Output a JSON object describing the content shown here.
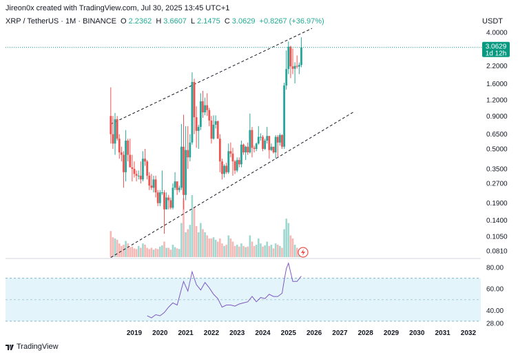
{
  "attribution": "Jireon0x created with TradingView.com, Jul 30, 2025 13:45 UTC+1",
  "legend": {
    "symbol": "XRP / TetherUS · 1M · BINANCE",
    "open_label": "O",
    "open": "2.2362",
    "high_label": "H",
    "high": "3.6607",
    "low_label": "L",
    "low": "2.1475",
    "close_label": "C",
    "close": "3.0629",
    "change": "+0.8267 (+36.97%)"
  },
  "currency": "USDT",
  "price_tag": {
    "price": "3.0629",
    "countdown": "1d 12h"
  },
  "footer": {
    "brand": "TradingView"
  },
  "colors": {
    "up": "#26a69a",
    "down": "#ef5350",
    "rsi_line": "#7e57c2",
    "rsi_band": "#e3f4fb",
    "accent": "#089981"
  },
  "chart_data": [
    {
      "type": "candlestick",
      "title": "XRP / TetherUS · 1M · BINANCE",
      "ylabel": "USDT",
      "yscale": "log",
      "y_ticks": [
        4.0,
        2.2,
        1.6,
        1.2,
        0.9,
        0.65,
        0.5,
        0.35,
        0.27,
        0.19,
        0.14,
        0.105,
        0.081
      ],
      "y_tick_labels": [
        "4.0000",
        "2.2000",
        "1.6000",
        "1.2000",
        "0.9000",
        "0.6500",
        "0.5000",
        "0.3500",
        "0.2700",
        "0.1900",
        "0.1400",
        "0.1050",
        "0.0810"
      ],
      "x_ticks": [
        "2019",
        "2020",
        "2021",
        "2022",
        "2023",
        "2024",
        "2025",
        "2026",
        "2027",
        "2028",
        "2029",
        "2030",
        "2031",
        "2032"
      ],
      "candles": [
        {
          "t": "2018-02",
          "o": 0.9,
          "h": 1.5,
          "l": 0.55,
          "c": 0.65
        },
        {
          "t": "2018-03",
          "o": 0.65,
          "h": 0.9,
          "l": 0.5,
          "c": 0.55
        },
        {
          "t": "2018-04",
          "o": 0.55,
          "h": 0.95,
          "l": 0.45,
          "c": 0.85
        },
        {
          "t": "2018-05",
          "o": 0.85,
          "h": 0.9,
          "l": 0.58,
          "c": 0.6
        },
        {
          "t": "2018-06",
          "o": 0.6,
          "h": 0.65,
          "l": 0.42,
          "c": 0.47
        },
        {
          "t": "2018-07",
          "o": 0.47,
          "h": 0.52,
          "l": 0.4,
          "c": 0.45
        },
        {
          "t": "2018-08",
          "o": 0.45,
          "h": 0.48,
          "l": 0.25,
          "c": 0.33
        },
        {
          "t": "2018-09",
          "o": 0.33,
          "h": 0.7,
          "l": 0.28,
          "c": 0.58
        },
        {
          "t": "2018-10",
          "o": 0.58,
          "h": 0.6,
          "l": 0.4,
          "c": 0.45
        },
        {
          "t": "2018-11",
          "o": 0.45,
          "h": 0.6,
          "l": 0.38,
          "c": 0.36
        },
        {
          "t": "2018-12",
          "o": 0.36,
          "h": 0.45,
          "l": 0.28,
          "c": 0.35
        },
        {
          "t": "2019-01",
          "o": 0.35,
          "h": 0.4,
          "l": 0.3,
          "c": 0.32
        },
        {
          "t": "2019-02",
          "o": 0.32,
          "h": 0.34,
          "l": 0.28,
          "c": 0.31
        },
        {
          "t": "2019-03",
          "o": 0.31,
          "h": 0.34,
          "l": 0.29,
          "c": 0.31
        },
        {
          "t": "2019-04",
          "o": 0.31,
          "h": 0.4,
          "l": 0.27,
          "c": 0.29
        },
        {
          "t": "2019-05",
          "o": 0.29,
          "h": 0.48,
          "l": 0.28,
          "c": 0.42
        },
        {
          "t": "2019-06",
          "o": 0.42,
          "h": 0.5,
          "l": 0.37,
          "c": 0.4
        },
        {
          "t": "2019-07",
          "o": 0.4,
          "h": 0.41,
          "l": 0.29,
          "c": 0.31
        },
        {
          "t": "2019-08",
          "o": 0.31,
          "h": 0.33,
          "l": 0.24,
          "c": 0.26
        },
        {
          "t": "2019-09",
          "o": 0.26,
          "h": 0.32,
          "l": 0.24,
          "c": 0.25
        },
        {
          "t": "2019-10",
          "o": 0.25,
          "h": 0.31,
          "l": 0.23,
          "c": 0.29
        },
        {
          "t": "2019-11",
          "o": 0.29,
          "h": 0.31,
          "l": 0.21,
          "c": 0.23
        },
        {
          "t": "2019-12",
          "o": 0.23,
          "h": 0.24,
          "l": 0.18,
          "c": 0.19
        },
        {
          "t": "2020-01",
          "o": 0.19,
          "h": 0.24,
          "l": 0.18,
          "c": 0.23
        },
        {
          "t": "2020-02",
          "o": 0.23,
          "h": 0.34,
          "l": 0.22,
          "c": 0.23
        },
        {
          "t": "2020-03",
          "o": 0.23,
          "h": 0.24,
          "l": 0.11,
          "c": 0.17
        },
        {
          "t": "2020-04",
          "o": 0.17,
          "h": 0.23,
          "l": 0.17,
          "c": 0.21
        },
        {
          "t": "2020-05",
          "o": 0.21,
          "h": 0.22,
          "l": 0.17,
          "c": 0.2
        },
        {
          "t": "2020-06",
          "o": 0.2,
          "h": 0.21,
          "l": 0.17,
          "c": 0.175
        },
        {
          "t": "2020-07",
          "o": 0.175,
          "h": 0.27,
          "l": 0.17,
          "c": 0.25
        },
        {
          "t": "2020-08",
          "o": 0.25,
          "h": 0.33,
          "l": 0.24,
          "c": 0.28
        },
        {
          "t": "2020-09",
          "o": 0.28,
          "h": 0.28,
          "l": 0.22,
          "c": 0.24
        },
        {
          "t": "2020-10",
          "o": 0.24,
          "h": 0.26,
          "l": 0.23,
          "c": 0.25
        },
        {
          "t": "2020-11",
          "o": 0.25,
          "h": 0.78,
          "l": 0.24,
          "c": 0.52
        },
        {
          "t": "2020-12",
          "o": 0.52,
          "h": 0.92,
          "l": 0.17,
          "c": 0.22
        },
        {
          "t": "2021-01",
          "o": 0.22,
          "h": 0.75,
          "l": 0.2,
          "c": 0.49
        },
        {
          "t": "2021-02",
          "o": 0.49,
          "h": 0.75,
          "l": 0.35,
          "c": 0.43
        },
        {
          "t": "2021-03",
          "o": 0.43,
          "h": 0.65,
          "l": 0.4,
          "c": 0.56
        },
        {
          "t": "2021-04",
          "o": 0.56,
          "h": 1.96,
          "l": 0.54,
          "c": 1.65
        },
        {
          "t": "2021-05",
          "o": 1.65,
          "h": 1.75,
          "l": 0.65,
          "c": 0.88
        },
        {
          "t": "2021-06",
          "o": 0.88,
          "h": 1.07,
          "l": 0.51,
          "c": 0.69
        },
        {
          "t": "2021-07",
          "o": 0.69,
          "h": 0.77,
          "l": 0.5,
          "c": 0.74
        },
        {
          "t": "2021-08",
          "o": 0.74,
          "h": 1.35,
          "l": 0.7,
          "c": 1.17
        },
        {
          "t": "2021-09",
          "o": 1.17,
          "h": 1.41,
          "l": 0.87,
          "c": 0.96
        },
        {
          "t": "2021-10",
          "o": 0.96,
          "h": 1.25,
          "l": 0.91,
          "c": 1.09
        },
        {
          "t": "2021-11",
          "o": 1.09,
          "h": 1.35,
          "l": 0.9,
          "c": 1.0
        },
        {
          "t": "2021-12",
          "o": 1.0,
          "h": 1.04,
          "l": 0.75,
          "c": 0.83
        },
        {
          "t": "2022-01",
          "o": 0.83,
          "h": 0.9,
          "l": 0.55,
          "c": 0.6
        },
        {
          "t": "2022-02",
          "o": 0.6,
          "h": 0.91,
          "l": 0.59,
          "c": 0.77
        },
        {
          "t": "2022-03",
          "o": 0.77,
          "h": 0.91,
          "l": 0.72,
          "c": 0.82
        },
        {
          "t": "2022-04",
          "o": 0.82,
          "h": 0.83,
          "l": 0.6,
          "c": 0.6
        },
        {
          "t": "2022-05",
          "o": 0.6,
          "h": 0.65,
          "l": 0.33,
          "c": 0.4
        },
        {
          "t": "2022-06",
          "o": 0.4,
          "h": 0.42,
          "l": 0.29,
          "c": 0.32
        },
        {
          "t": "2022-07",
          "o": 0.32,
          "h": 0.38,
          "l": 0.3,
          "c": 0.37
        },
        {
          "t": "2022-08",
          "o": 0.37,
          "h": 0.39,
          "l": 0.32,
          "c": 0.33
        },
        {
          "t": "2022-09",
          "o": 0.33,
          "h": 0.55,
          "l": 0.32,
          "c": 0.48
        },
        {
          "t": "2022-10",
          "o": 0.48,
          "h": 0.56,
          "l": 0.43,
          "c": 0.46
        },
        {
          "t": "2022-11",
          "o": 0.46,
          "h": 0.51,
          "l": 0.31,
          "c": 0.4
        },
        {
          "t": "2022-12",
          "o": 0.4,
          "h": 0.41,
          "l": 0.32,
          "c": 0.34
        },
        {
          "t": "2023-01",
          "o": 0.34,
          "h": 0.43,
          "l": 0.33,
          "c": 0.41
        },
        {
          "t": "2023-02",
          "o": 0.41,
          "h": 0.43,
          "l": 0.36,
          "c": 0.38
        },
        {
          "t": "2023-03",
          "o": 0.38,
          "h": 0.58,
          "l": 0.36,
          "c": 0.54
        },
        {
          "t": "2023-04",
          "o": 0.54,
          "h": 0.55,
          "l": 0.45,
          "c": 0.47
        },
        {
          "t": "2023-05",
          "o": 0.47,
          "h": 0.53,
          "l": 0.41,
          "c": 0.52
        },
        {
          "t": "2023-06",
          "o": 0.52,
          "h": 0.56,
          "l": 0.45,
          "c": 0.47
        },
        {
          "t": "2023-07",
          "o": 0.47,
          "h": 0.94,
          "l": 0.46,
          "c": 0.7
        },
        {
          "t": "2023-08",
          "o": 0.7,
          "h": 0.74,
          "l": 0.43,
          "c": 0.51
        },
        {
          "t": "2023-09",
          "o": 0.51,
          "h": 0.53,
          "l": 0.47,
          "c": 0.5
        },
        {
          "t": "2023-10",
          "o": 0.5,
          "h": 0.56,
          "l": 0.48,
          "c": 0.55
        },
        {
          "t": "2023-11",
          "o": 0.55,
          "h": 0.75,
          "l": 0.54,
          "c": 0.62
        },
        {
          "t": "2023-12",
          "o": 0.62,
          "h": 0.66,
          "l": 0.58,
          "c": 0.62
        },
        {
          "t": "2024-01",
          "o": 0.62,
          "h": 0.64,
          "l": 0.48,
          "c": 0.5
        },
        {
          "t": "2024-02",
          "o": 0.5,
          "h": 0.6,
          "l": 0.49,
          "c": 0.58
        },
        {
          "t": "2024-03",
          "o": 0.58,
          "h": 0.74,
          "l": 0.55,
          "c": 0.63
        },
        {
          "t": "2024-04",
          "o": 0.63,
          "h": 0.63,
          "l": 0.42,
          "c": 0.49
        },
        {
          "t": "2024-05",
          "o": 0.49,
          "h": 0.55,
          "l": 0.48,
          "c": 0.52
        },
        {
          "t": "2024-06",
          "o": 0.52,
          "h": 0.52,
          "l": 0.46,
          "c": 0.47
        },
        {
          "t": "2024-07",
          "o": 0.47,
          "h": 0.64,
          "l": 0.42,
          "c": 0.62
        },
        {
          "t": "2024-08",
          "o": 0.62,
          "h": 0.64,
          "l": 0.43,
          "c": 0.56
        },
        {
          "t": "2024-09",
          "o": 0.56,
          "h": 0.66,
          "l": 0.53,
          "c": 0.64
        },
        {
          "t": "2024-10",
          "o": 0.64,
          "h": 0.65,
          "l": 0.5,
          "c": 0.52
        },
        {
          "t": "2024-11",
          "o": 0.52,
          "h": 1.63,
          "l": 0.5,
          "c": 1.55
        },
        {
          "t": "2024-12",
          "o": 1.55,
          "h": 2.9,
          "l": 1.44,
          "c": 2.08
        },
        {
          "t": "2025-01",
          "o": 2.08,
          "h": 3.4,
          "l": 1.9,
          "c": 3.1
        },
        {
          "t": "2025-02",
          "o": 3.1,
          "h": 3.15,
          "l": 1.77,
          "c": 2.18
        },
        {
          "t": "2025-03",
          "o": 2.18,
          "h": 3.0,
          "l": 1.9,
          "c": 2.09
        },
        {
          "t": "2025-04",
          "o": 2.09,
          "h": 2.35,
          "l": 1.61,
          "c": 2.2
        },
        {
          "t": "2025-05",
          "o": 2.2,
          "h": 2.65,
          "l": 2.1,
          "c": 2.17
        },
        {
          "t": "2025-06",
          "o": 2.17,
          "h": 2.34,
          "l": 1.9,
          "c": 2.24
        },
        {
          "t": "2025-07",
          "o": 2.2362,
          "h": 3.6607,
          "l": 2.1475,
          "c": 3.0629
        }
      ],
      "volume": [
        0.42,
        0.32,
        0.3,
        0.28,
        0.22,
        0.18,
        0.2,
        0.26,
        0.22,
        0.16,
        0.17,
        0.14,
        0.13,
        0.18,
        0.15,
        0.22,
        0.2,
        0.15,
        0.13,
        0.15,
        0.12,
        0.14,
        0.13,
        0.17,
        0.19,
        0.25,
        0.15,
        0.15,
        0.12,
        0.2,
        0.16,
        0.14,
        0.13,
        0.55,
        0.95,
        0.4,
        0.45,
        0.52,
        1.0,
        0.8,
        0.5,
        0.4,
        0.55,
        0.45,
        0.4,
        0.35,
        0.3,
        0.3,
        0.32,
        0.28,
        0.25,
        0.3,
        0.22,
        0.18,
        0.2,
        0.35,
        0.3,
        0.25,
        0.18,
        0.2,
        0.17,
        0.22,
        0.18,
        0.16,
        0.17,
        0.35,
        0.25,
        0.18,
        0.2,
        0.3,
        0.22,
        0.17,
        0.19,
        0.25,
        0.18,
        0.2,
        0.14,
        0.22,
        0.2,
        0.18,
        0.15,
        0.45,
        0.62,
        0.55,
        0.35,
        0.3,
        0.2,
        0.15,
        0.12,
        0.15
      ],
      "channel": {
        "upper": [
          {
            "t": "2018-02",
            "v": 0.78
          },
          {
            "t": "2025-12",
            "v": 4.3
          }
        ],
        "lower": [
          {
            "t": "2018-02",
            "v": 0.072
          },
          {
            "t": "2027-08",
            "v": 0.98
          }
        ]
      },
      "last_price": 3.0629
    },
    {
      "type": "line",
      "title": "",
      "yscale": "linear",
      "y_ticks": [
        80,
        60,
        40,
        28
      ],
      "y_tick_labels": [
        "80.00",
        "60.00",
        "40.00",
        "28.00"
      ],
      "band": [
        30,
        70
      ],
      "level_line": 50,
      "x": [
        "2019-07",
        "2019-09",
        "2019-11",
        "2020-01",
        "2020-03",
        "2020-05",
        "2020-07",
        "2020-09",
        "2020-11",
        "2020-12",
        "2021-02",
        "2021-04",
        "2021-06",
        "2021-08",
        "2021-10",
        "2021-12",
        "2022-02",
        "2022-04",
        "2022-06",
        "2022-08",
        "2022-10",
        "2022-12",
        "2023-02",
        "2023-04",
        "2023-06",
        "2023-08",
        "2023-10",
        "2023-12",
        "2024-02",
        "2024-04",
        "2024-06",
        "2024-08",
        "2024-10",
        "2024-11",
        "2024-12",
        "2025-01",
        "2025-03",
        "2025-05",
        "2025-07"
      ],
      "values": [
        35,
        33,
        36,
        35,
        38,
        43,
        47,
        45,
        60,
        67,
        58,
        76,
        64,
        59,
        66,
        61,
        55,
        51,
        43,
        45,
        45,
        44,
        46,
        47,
        48,
        53,
        48,
        52,
        51,
        55,
        53,
        53,
        56,
        68,
        79,
        84,
        67,
        67,
        72
      ]
    }
  ]
}
